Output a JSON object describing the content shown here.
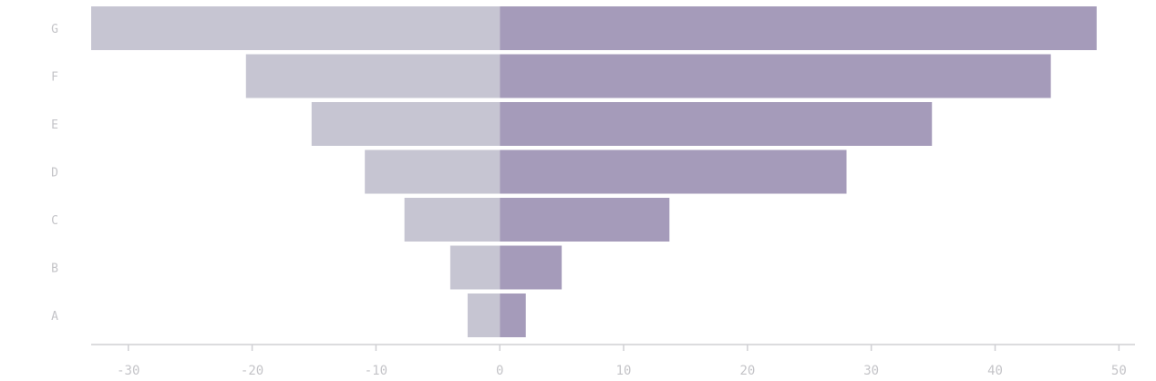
{
  "chart_data": {
    "type": "bar",
    "orientation": "horizontal",
    "diverging": true,
    "categories": [
      "A",
      "B",
      "C",
      "D",
      "E",
      "F",
      "G"
    ],
    "series": [
      {
        "color": "#c6c5d2",
        "values": [
          -2.6,
          -4,
          -7.7,
          -10.9,
          -15.2,
          -20.5,
          -33
        ]
      },
      {
        "color": "#a59bba",
        "values": [
          2.1,
          5,
          13.7,
          28,
          34.9,
          44.5,
          48.2
        ]
      }
    ],
    "xticks": [
      -30,
      -20,
      -10,
      0,
      10,
      20,
      30,
      40,
      50
    ],
    "xtick_labels": [
      "-30",
      "-20",
      "-10",
      "0",
      "10",
      "20",
      "30",
      "40",
      "50"
    ],
    "xlim": [
      -33,
      51.3
    ],
    "title": "",
    "xlabel": "",
    "ylabel": "",
    "grid": false,
    "axis_color": "#d0d0d4",
    "label_color": "#c4c4c8"
  }
}
